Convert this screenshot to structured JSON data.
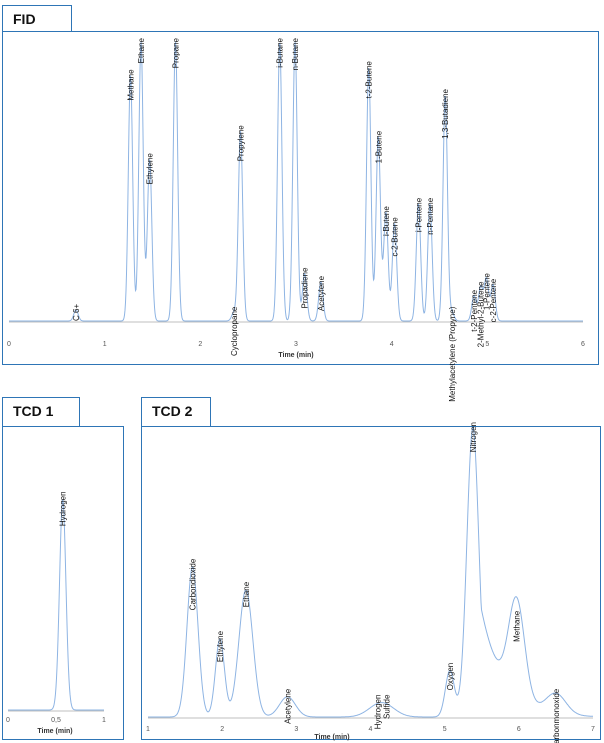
{
  "colors": {
    "frame": "#2e75b6",
    "trace": "#8eb4e3",
    "axis": "#bfbfbf"
  },
  "chart_data": [
    {
      "id": "fid",
      "title": "FID",
      "type": "line",
      "xlabel": "Time (min)",
      "xlim": [
        0,
        6
      ],
      "xticks": [
        0,
        1,
        2,
        3,
        4,
        5,
        6
      ],
      "ylim": [
        0,
        100
      ],
      "peaks": [
        {
          "name": "C 6+",
          "x": 0.7,
          "y": 4
        },
        {
          "name": "Methane",
          "x": 1.27,
          "y": 88
        },
        {
          "name": "Ethane",
          "x": 1.38,
          "y": 100
        },
        {
          "name": "Ethylene",
          "x": 1.47,
          "y": 58
        },
        {
          "name": "Propane",
          "x": 1.74,
          "y": 100
        },
        {
          "name": "Cyclopropane",
          "x": 2.35,
          "y": 3
        },
        {
          "name": "Propylene",
          "x": 2.42,
          "y": 68
        },
        {
          "name": "i-Butane",
          "x": 2.83,
          "y": 100
        },
        {
          "name": "n-Butane",
          "x": 2.99,
          "y": 100
        },
        {
          "name": "Propadiene",
          "x": 3.09,
          "y": 17
        },
        {
          "name": "Acetylene",
          "x": 3.26,
          "y": 14
        },
        {
          "name": "t-2-Butene",
          "x": 3.76,
          "y": 91
        },
        {
          "name": "1-Butene",
          "x": 3.86,
          "y": 66
        },
        {
          "name": "i-Butene",
          "x": 3.94,
          "y": 39
        },
        {
          "name": "c-2-Butene",
          "x": 4.03,
          "y": 35
        },
        {
          "name": "i-Pentene",
          "x": 4.28,
          "y": 42
        },
        {
          "name": "n-Pentane",
          "x": 4.4,
          "y": 42
        },
        {
          "name": "1,3-Butadiene",
          "x": 4.56,
          "y": 81
        },
        {
          "name": "Methylacetylene (Propyne)",
          "x": 4.63,
          "y": 3
        },
        {
          "name": "t-2-Pentene",
          "x": 4.86,
          "y": 9
        },
        {
          "name": "2-Methyl-2-Butene",
          "x": 4.93,
          "y": 12
        },
        {
          "name": "1-Pentene",
          "x": 4.99,
          "y": 15
        },
        {
          "name": "c-2-Pentene",
          "x": 5.06,
          "y": 13
        }
      ]
    },
    {
      "id": "tcd1",
      "title": "TCD 1",
      "type": "line",
      "xlabel": "Time (min)",
      "xlim": [
        0,
        1
      ],
      "xticks": [
        0,
        0.5,
        1
      ],
      "xticklabels": [
        "0",
        "0,5",
        "1"
      ],
      "ylim": [
        0,
        100
      ],
      "peaks": [
        {
          "name": "Hydrogen",
          "x": 0.57,
          "y": 87
        }
      ]
    },
    {
      "id": "tcd2",
      "title": "TCD 2",
      "type": "line",
      "xlabel": "Time (min)",
      "xlim": [
        1,
        7
      ],
      "xticks": [
        1,
        2,
        3,
        4,
        5,
        6,
        7
      ],
      "ylim": [
        0,
        100
      ],
      "peaks": [
        {
          "name": "Carbondioxide",
          "x": 1.6,
          "y": 52
        },
        {
          "name": "Ethylene",
          "x": 1.97,
          "y": 27
        },
        {
          "name": "Ethane",
          "x": 2.32,
          "y": 44
        },
        {
          "name": "Acetylene",
          "x": 2.88,
          "y": 7
        },
        {
          "name": "Hydrogen Sulfide",
          "x": 4.15,
          "y": 5
        },
        {
          "name": "Oxygen",
          "x": 5.07,
          "y": 16
        },
        {
          "name": "Nitrogen",
          "x": 5.38,
          "y": 100
        },
        {
          "name": "Methane",
          "x": 5.97,
          "y": 34
        },
        {
          "name": "Carbonmonoxide",
          "x": 6.5,
          "y": 7
        }
      ]
    }
  ]
}
